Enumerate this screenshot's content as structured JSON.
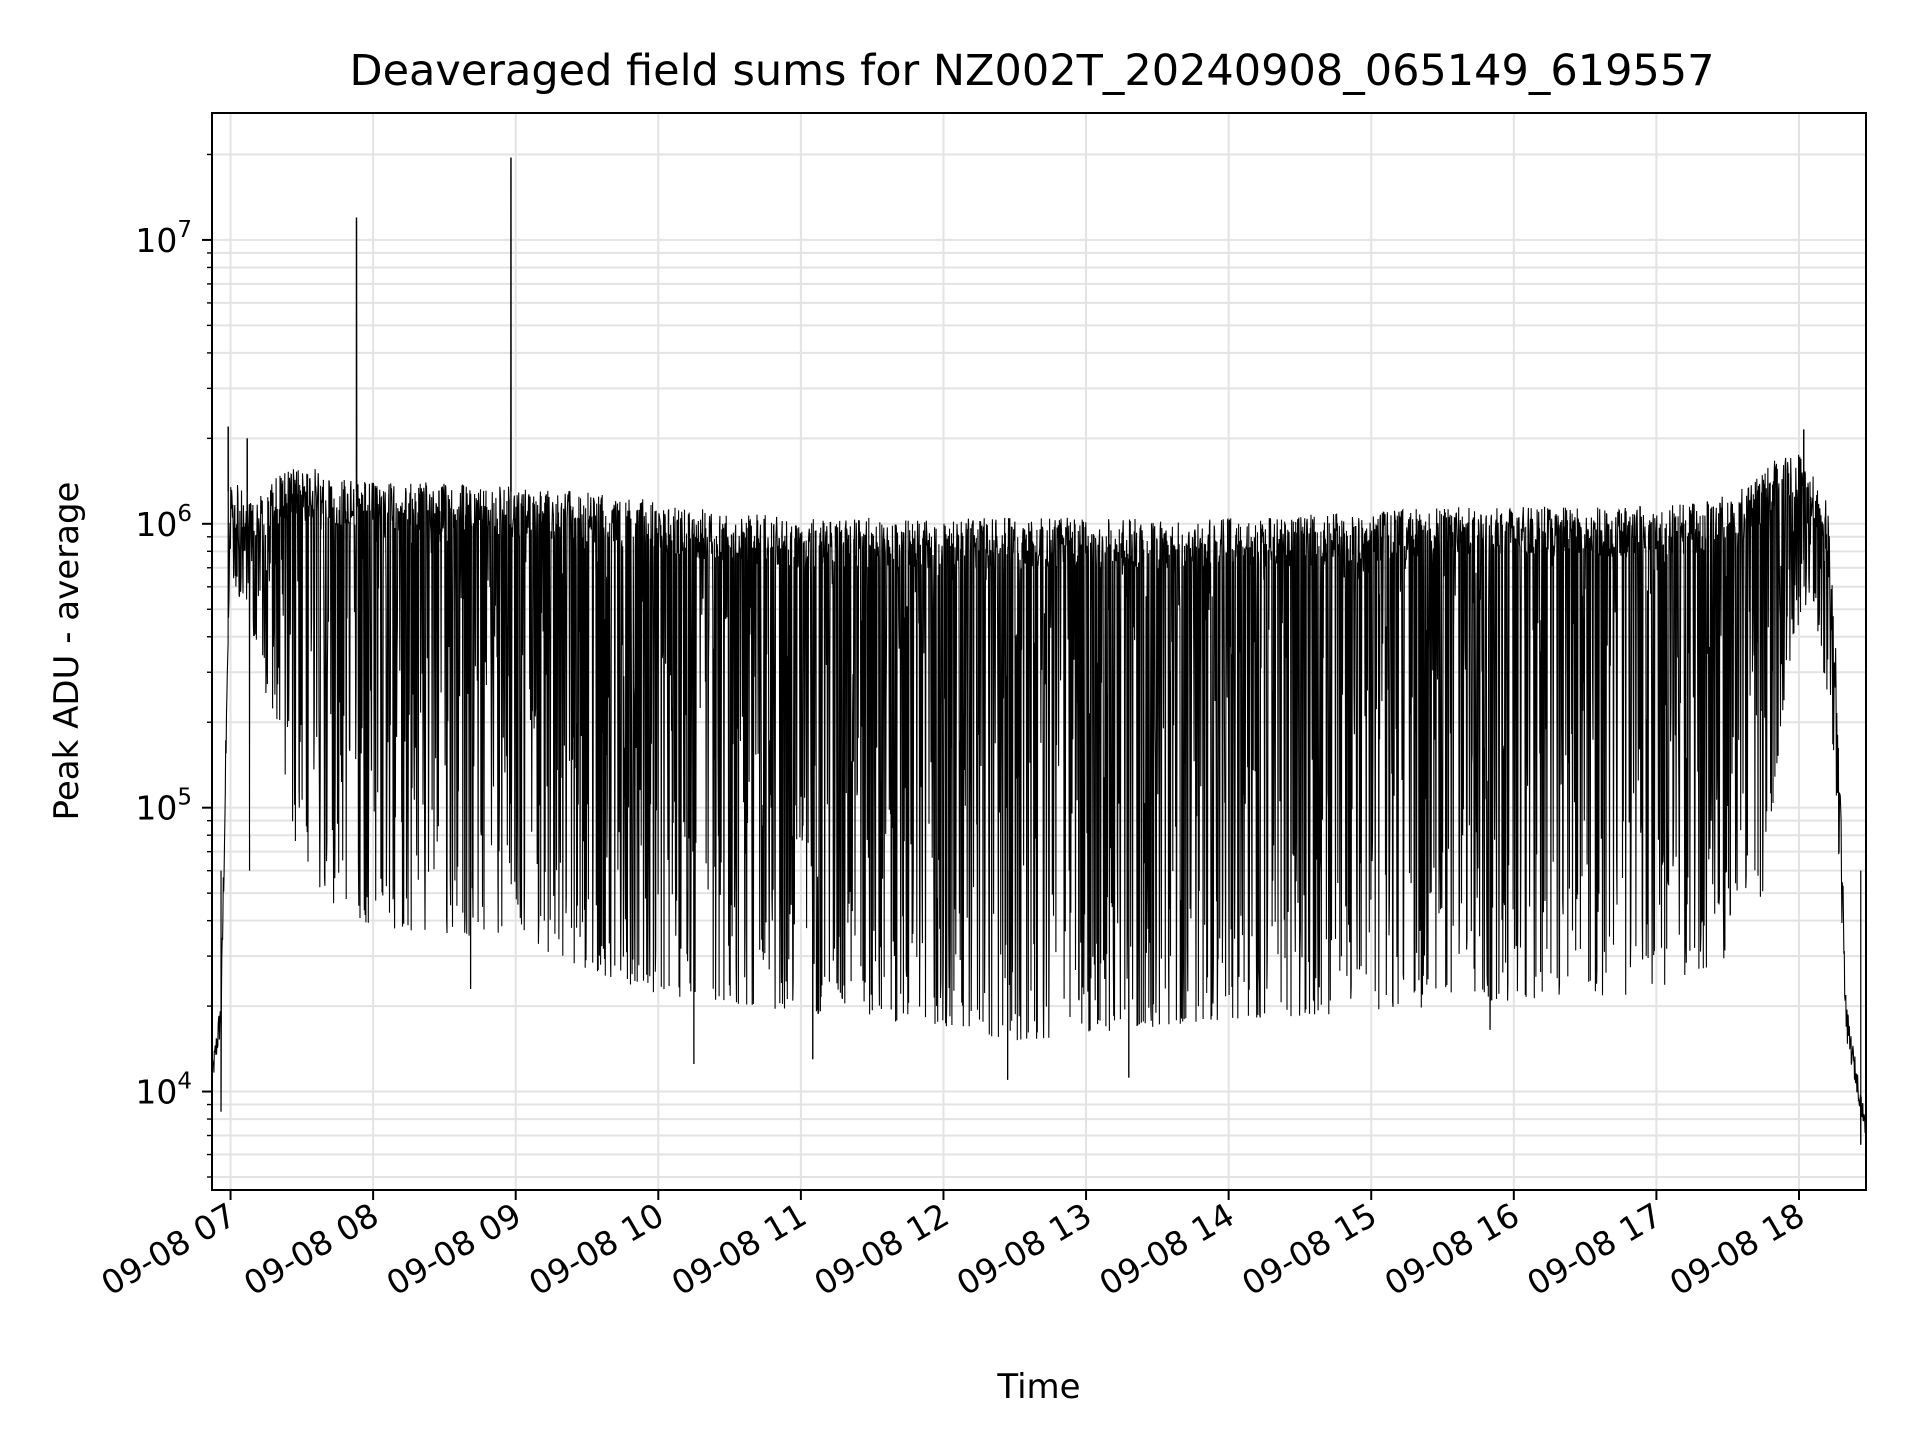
{
  "chart_data": {
    "type": "line",
    "title": "Deaveraged field sums for NZ002T_20240908_065149_619557",
    "xlabel": "Time",
    "ylabel": "Peak ADU - average",
    "yscale": "log",
    "ylim": [
      4500,
      28000000
    ],
    "xlim_hours": [
      6.87,
      18.47
    ],
    "grid": true,
    "line_color": "#000000",
    "x_ticks": [
      "09-08 07",
      "09-08 08",
      "09-08 09",
      "09-08 10",
      "09-08 11",
      "09-08 12",
      "09-08 13",
      "09-08 14",
      "09-08 15",
      "09-08 16",
      "09-08 17",
      "09-08 18"
    ],
    "y_ticks": [
      {
        "base": "10",
        "exp": "4",
        "value": 10000
      },
      {
        "base": "10",
        "exp": "5",
        "value": 100000
      },
      {
        "base": "10",
        "exp": "6",
        "value": 1000000
      },
      {
        "base": "10",
        "exp": "7",
        "value": 10000000
      }
    ],
    "series": [
      {
        "envelope_upper": {
          "x": [
            "2024-09-08 06:52",
            "2024-09-08 06:56",
            "2024-09-08 07:00",
            "2024-09-08 07:05",
            "2024-09-08 07:10",
            "2024-09-08 07:20",
            "2024-09-08 07:30",
            "2024-09-08 07:45",
            "2024-09-08 08:00",
            "2024-09-08 08:30",
            "2024-09-08 09:00",
            "2024-09-08 09:30",
            "2024-09-08 10:00",
            "2024-09-08 10:30",
            "2024-09-08 11:00",
            "2024-09-08 12:00",
            "2024-09-08 13:00",
            "2024-09-08 14:00",
            "2024-09-08 15:00",
            "2024-09-08 15:30",
            "2024-09-08 16:00",
            "2024-09-08 16:30",
            "2024-09-08 17:00",
            "2024-09-08 17:20",
            "2024-09-08 17:40",
            "2024-09-08 17:50",
            "2024-09-08 18:00",
            "2024-09-08 18:07",
            "2024-09-08 18:12",
            "2024-09-08 18:16",
            "2024-09-08 18:20",
            "2024-09-08 18:28"
          ],
          "y": [
            12000,
            22000,
            1500000,
            1300000,
            1200000,
            1500000,
            1600000,
            1500000,
            1400000,
            1400000,
            1350000,
            1300000,
            1200000,
            1100000,
            1050000,
            1050000,
            1050000,
            1050000,
            1100000,
            1150000,
            1150000,
            1150000,
            1150000,
            1200000,
            1400000,
            1700000,
            1800000,
            1500000,
            1200000,
            300000,
            20000,
            8000
          ]
        },
        "envelope_lower": {
          "x": [
            "2024-09-08 06:52",
            "2024-09-08 06:56",
            "2024-09-08 07:00",
            "2024-09-08 07:05",
            "2024-09-08 07:15",
            "2024-09-08 07:25",
            "2024-09-08 07:30",
            "2024-09-08 07:45",
            "2024-09-08 08:00",
            "2024-09-08 08:30",
            "2024-09-08 09:00",
            "2024-09-08 09:30",
            "2024-09-08 10:00",
            "2024-09-08 11:00",
            "2024-09-08 12:00",
            "2024-09-08 12:30",
            "2024-09-08 13:00",
            "2024-09-08 14:00",
            "2024-09-08 15:00",
            "2024-09-08 16:00",
            "2024-09-08 17:00",
            "2024-09-08 17:30",
            "2024-09-08 17:45",
            "2024-09-08 17:55",
            "2024-09-08 18:05",
            "2024-09-08 18:15",
            "2024-09-08 18:20",
            "2024-09-08 18:28"
          ],
          "y": [
            10000,
            16000,
            700000,
            500000,
            250000,
            100000,
            55000,
            45000,
            38000,
            36000,
            34000,
            27000,
            22000,
            19000,
            17000,
            15000,
            16000,
            18000,
            19000,
            21000,
            22000,
            30000,
            50000,
            300000,
            600000,
            150000,
            15000,
            7000
          ]
        },
        "spikes": [
          {
            "x": "2024-09-08 07:53",
            "y": 12000000
          },
          {
            "x": "2024-09-08 08:58",
            "y": 19500000
          },
          {
            "x": "2024-09-08 07:07",
            "y": 2000000
          },
          {
            "x": "2024-09-08 06:59",
            "y": 2200000
          },
          {
            "x": "2024-09-08 18:02",
            "y": 2150000
          }
        ],
        "dips": [
          {
            "x": "2024-09-08 07:08",
            "y": 80000
          },
          {
            "x": "2024-09-08 06:56",
            "y": 8500
          },
          {
            "x": "2024-09-08 08:41",
            "y": 23000
          },
          {
            "x": "2024-09-08 10:15",
            "y": 12500
          },
          {
            "x": "2024-09-08 11:05",
            "y": 13000
          },
          {
            "x": "2024-09-08 12:27",
            "y": 11000
          },
          {
            "x": "2024-09-08 13:18",
            "y": 11200
          },
          {
            "x": "2024-09-08 15:50",
            "y": 16500
          },
          {
            "x": "2024-09-08 18:26",
            "y": 6500
          }
        ]
      }
    ]
  }
}
